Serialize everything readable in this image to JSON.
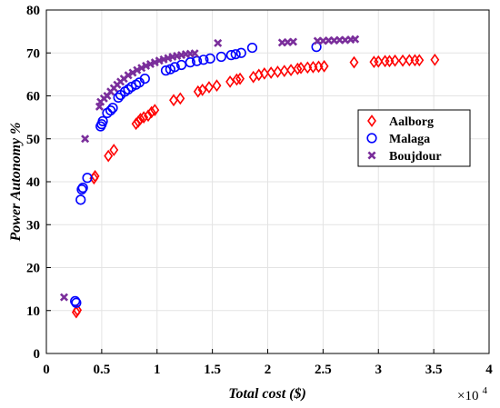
{
  "chart_data": {
    "type": "scatter",
    "xlabel": "Total cost ($)",
    "ylabel": "Power Autonomy %",
    "x_exponent_base": "×10",
    "x_exponent_power": "4",
    "xlim": [
      0,
      4
    ],
    "ylim": [
      0,
      80
    ],
    "x_ticks": [
      0,
      0.5,
      1,
      1.5,
      2,
      2.5,
      3,
      3.5,
      4
    ],
    "x_tick_labels": [
      "0",
      "0.5",
      "1",
      "1.5",
      "2",
      "2.5",
      "3",
      "3.5",
      "4"
    ],
    "y_ticks": [
      0,
      10,
      20,
      30,
      40,
      50,
      60,
      70,
      80
    ],
    "y_tick_labels": [
      "0",
      "10",
      "20",
      "30",
      "40",
      "50",
      "60",
      "70",
      "80"
    ],
    "grid": true,
    "legend_position": "right",
    "series": [
      {
        "name": "Aalborg",
        "marker": "diamond",
        "color": "#ff0000",
        "points": [
          [
            0.27,
            9.6
          ],
          [
            0.28,
            10.1
          ],
          [
            0.43,
            40.8
          ],
          [
            0.44,
            41.3
          ],
          [
            0.56,
            46.0
          ],
          [
            0.61,
            47.4
          ],
          [
            0.81,
            53.5
          ],
          [
            0.83,
            54.0
          ],
          [
            0.85,
            54.6
          ],
          [
            0.88,
            55.0
          ],
          [
            0.92,
            55.4
          ],
          [
            0.95,
            56.2
          ],
          [
            0.98,
            56.7
          ],
          [
            1.15,
            59.0
          ],
          [
            1.21,
            59.4
          ],
          [
            1.37,
            61.0
          ],
          [
            1.41,
            61.4
          ],
          [
            1.47,
            62.0
          ],
          [
            1.54,
            62.4
          ],
          [
            1.66,
            63.3
          ],
          [
            1.72,
            63.8
          ],
          [
            1.75,
            64.0
          ],
          [
            1.87,
            64.4
          ],
          [
            1.92,
            64.9
          ],
          [
            1.97,
            65.2
          ],
          [
            2.03,
            65.4
          ],
          [
            2.09,
            65.6
          ],
          [
            2.15,
            65.8
          ],
          [
            2.21,
            66.0
          ],
          [
            2.27,
            66.3
          ],
          [
            2.3,
            66.5
          ],
          [
            2.36,
            66.6
          ],
          [
            2.41,
            66.7
          ],
          [
            2.46,
            66.8
          ],
          [
            2.51,
            66.9
          ],
          [
            2.78,
            67.8
          ],
          [
            2.96,
            67.9
          ],
          [
            3.0,
            68.0
          ],
          [
            3.06,
            68.1
          ],
          [
            3.1,
            68.1
          ],
          [
            3.15,
            68.2
          ],
          [
            3.22,
            68.2
          ],
          [
            3.28,
            68.3
          ],
          [
            3.33,
            68.3
          ],
          [
            3.37,
            68.3
          ],
          [
            3.51,
            68.4
          ]
        ]
      },
      {
        "name": "Malaga",
        "marker": "circle",
        "color": "#0000ff",
        "points": [
          [
            0.26,
            12.2
          ],
          [
            0.27,
            11.8
          ],
          [
            0.31,
            35.8
          ],
          [
            0.32,
            38.2
          ],
          [
            0.33,
            38.6
          ],
          [
            0.37,
            40.9
          ],
          [
            0.49,
            52.9
          ],
          [
            0.5,
            53.4
          ],
          [
            0.51,
            54.1
          ],
          [
            0.55,
            56.0
          ],
          [
            0.58,
            56.6
          ],
          [
            0.6,
            57.2
          ],
          [
            0.65,
            59.6
          ],
          [
            0.67,
            60.2
          ],
          [
            0.71,
            61.0
          ],
          [
            0.74,
            61.5
          ],
          [
            0.77,
            62.1
          ],
          [
            0.81,
            62.6
          ],
          [
            0.84,
            63.1
          ],
          [
            0.89,
            64.0
          ],
          [
            1.08,
            65.9
          ],
          [
            1.12,
            66.2
          ],
          [
            1.16,
            66.7
          ],
          [
            1.22,
            67.2
          ],
          [
            1.3,
            67.8
          ],
          [
            1.36,
            68.1
          ],
          [
            1.42,
            68.4
          ],
          [
            1.48,
            68.7
          ],
          [
            1.58,
            69.1
          ],
          [
            1.67,
            69.5
          ],
          [
            1.71,
            69.7
          ],
          [
            1.76,
            70.0
          ],
          [
            1.86,
            71.2
          ],
          [
            2.44,
            71.4
          ]
        ]
      },
      {
        "name": "Boujdour",
        "marker": "x",
        "color": "#7a2e9b",
        "points": [
          [
            0.16,
            13.1
          ],
          [
            0.35,
            50.0
          ],
          [
            0.48,
            57.5
          ],
          [
            0.49,
            58.6
          ],
          [
            0.52,
            59.4
          ],
          [
            0.55,
            60.0
          ],
          [
            0.58,
            61.0
          ],
          [
            0.61,
            61.8
          ],
          [
            0.64,
            62.6
          ],
          [
            0.67,
            63.3
          ],
          [
            0.7,
            64.0
          ],
          [
            0.74,
            64.8
          ],
          [
            0.78,
            65.4
          ],
          [
            0.82,
            66.0
          ],
          [
            0.86,
            66.5
          ],
          [
            0.9,
            67.0
          ],
          [
            0.94,
            67.4
          ],
          [
            0.98,
            67.8
          ],
          [
            1.02,
            68.2
          ],
          [
            1.06,
            68.5
          ],
          [
            1.1,
            68.8
          ],
          [
            1.14,
            69.1
          ],
          [
            1.18,
            69.3
          ],
          [
            1.22,
            69.5
          ],
          [
            1.26,
            69.7
          ],
          [
            1.3,
            69.8
          ],
          [
            1.34,
            69.9
          ],
          [
            1.55,
            72.3
          ],
          [
            2.13,
            72.4
          ],
          [
            2.18,
            72.5
          ],
          [
            2.23,
            72.6
          ],
          [
            2.45,
            72.8
          ],
          [
            2.5,
            72.8
          ],
          [
            2.55,
            72.9
          ],
          [
            2.6,
            72.9
          ],
          [
            2.65,
            73.0
          ],
          [
            2.7,
            73.0
          ],
          [
            2.75,
            73.1
          ],
          [
            2.79,
            73.2
          ]
        ]
      }
    ]
  }
}
